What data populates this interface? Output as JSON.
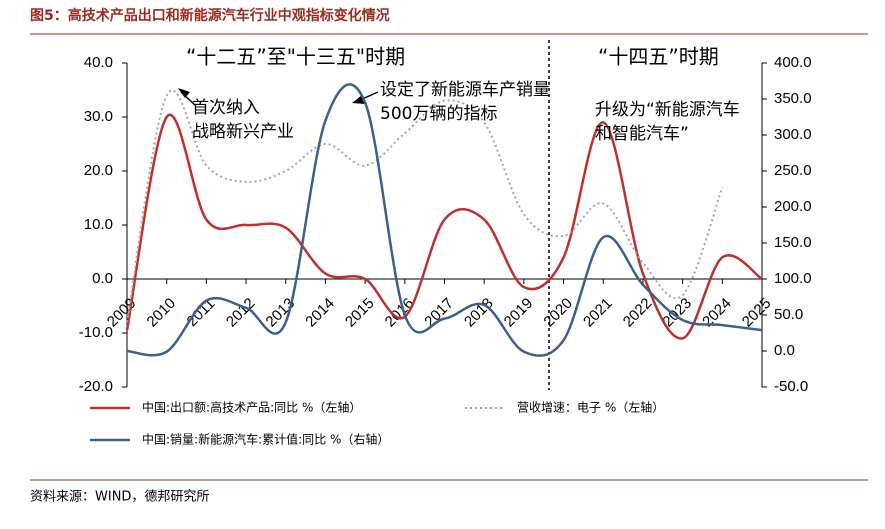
{
  "chart_data": {
    "type": "line",
    "title": "图5：高技术产品出口和新能源汽车行业中观指标变化情况",
    "source": "资料来源：WIND，德邦研究所",
    "categories": [
      "2009",
      "2010",
      "2011",
      "2012",
      "2013",
      "2014",
      "2015",
      "2016",
      "2017",
      "2018",
      "2019",
      "2020",
      "2021",
      "2022",
      "2023",
      "2024",
      "2025"
    ],
    "ylim": [
      -20,
      40
    ],
    "yticks": [
      {
        "value": -20,
        "label": "-20.0"
      },
      {
        "value": -10,
        "label": "-10.0"
      },
      {
        "value": 0,
        "label": "0.0"
      },
      {
        "value": 10,
        "label": "10.0"
      },
      {
        "value": 20,
        "label": "20.0"
      },
      {
        "value": 30,
        "label": "30.0"
      },
      {
        "value": 40,
        "label": "40.0"
      }
    ],
    "y2lim": [
      -50,
      400
    ],
    "y2ticks": [
      {
        "value": -50,
        "label": "-50.0"
      },
      {
        "value": 0,
        "label": "0.0"
      },
      {
        "value": 50,
        "label": "50.0"
      },
      {
        "value": 100,
        "label": "100.0"
      },
      {
        "value": 150,
        "label": "150.0"
      },
      {
        "value": 200,
        "label": "200.0"
      },
      {
        "value": 250,
        "label": "250.0"
      },
      {
        "value": 300,
        "label": "300.0"
      },
      {
        "value": 350,
        "label": "350.0"
      },
      {
        "value": 400,
        "label": "400.0"
      }
    ],
    "series": [
      {
        "name": "中国:出口额:高技术产品:同比 %（左轴）",
        "color": "#c0302b",
        "style": "solid",
        "values": [
          -9.5,
          30,
          11,
          10,
          9.5,
          1,
          0,
          -7,
          11,
          11,
          -1.5,
          4,
          29,
          1,
          -11,
          4,
          0
        ]
      },
      {
        "name": "营收增速：电子 %（左轴）",
        "color": "#a6a6a6",
        "style": "dotted",
        "values": [
          -8,
          34,
          21,
          18,
          20,
          25,
          21,
          27,
          33,
          29,
          12,
          8,
          14,
          3,
          -3,
          17,
          null
        ]
      },
      {
        "name": "中国:销量:新能源汽车:累计值:同比 %（右轴）",
        "color": "#3b5f8f",
        "style": "solid",
        "axis": "y2",
        "values": [
          0,
          -1,
          70,
          60,
          40,
          320,
          345,
          50,
          45,
          64,
          -1,
          15,
          158,
          92,
          43,
          36,
          29
        ]
      }
    ],
    "annotations": [
      [
        "“十二五”至\"十三五\"时期"
      ],
      [
        "“十四五”时期"
      ],
      [
        "首次纳入",
        "战略新兴产业"
      ],
      [
        "设定了新能源车产销量",
        "500万辆的指标"
      ],
      [
        "升级为“新能源汽车",
        "和智能汽车”"
      ]
    ]
  }
}
